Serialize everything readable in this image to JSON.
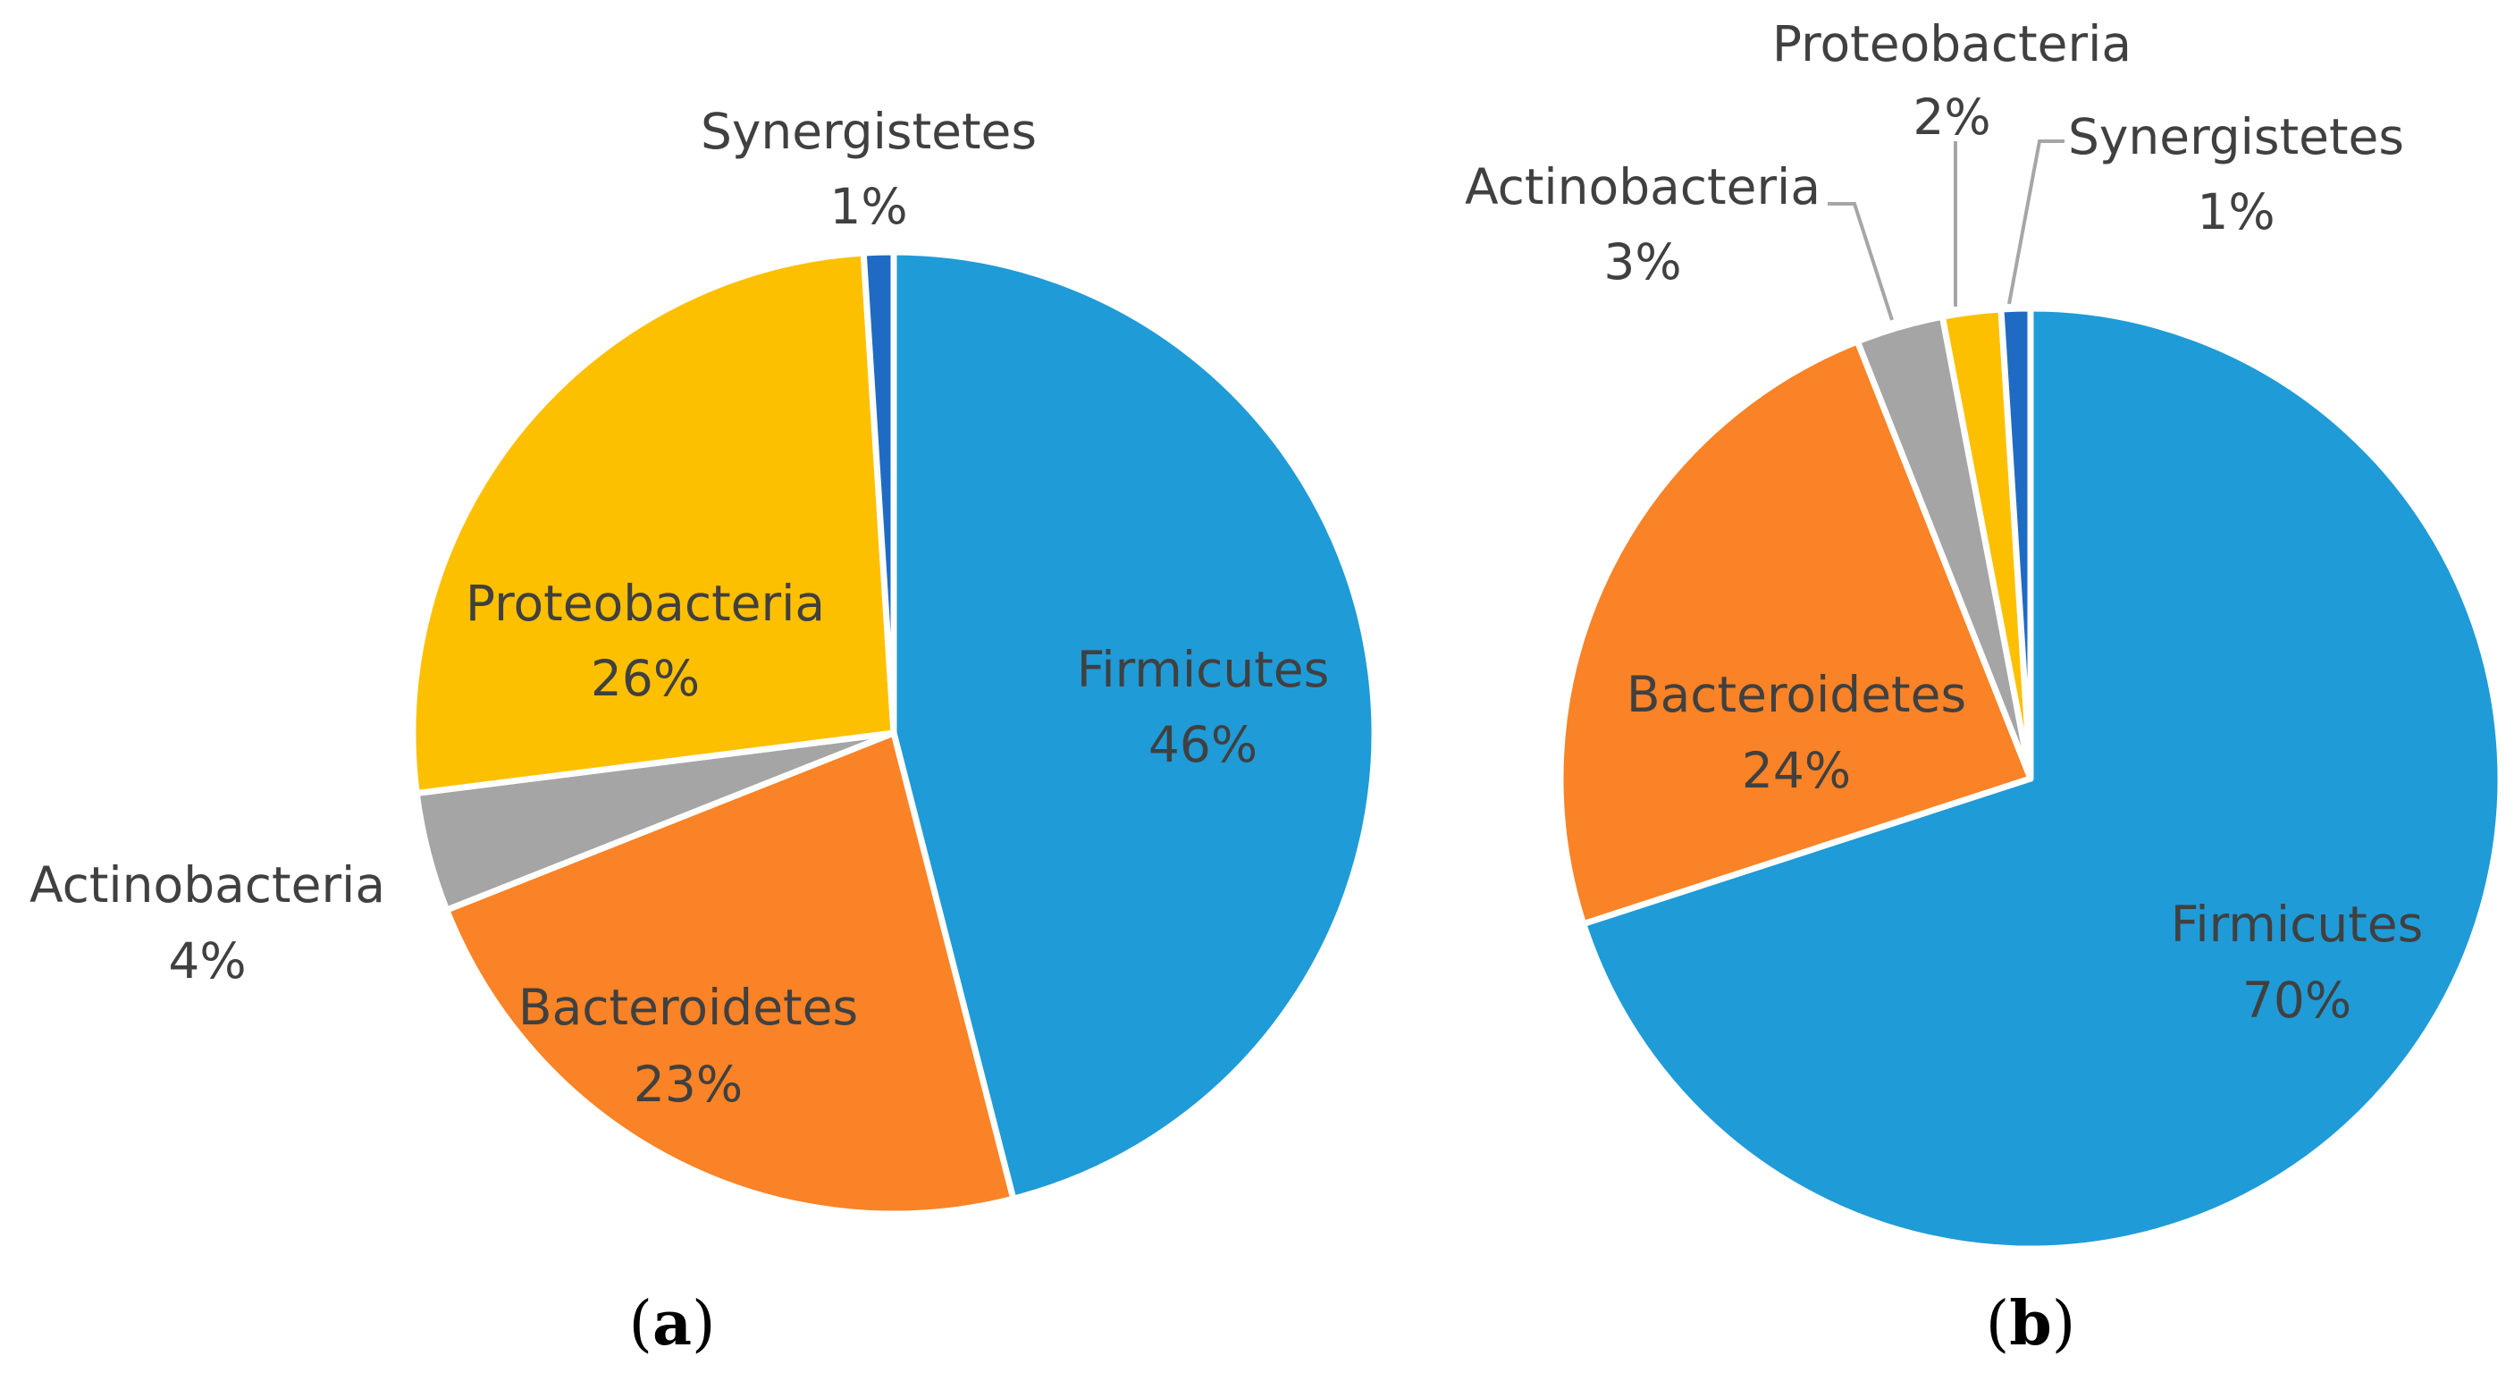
{
  "chart_data": [
    {
      "type": "pie",
      "panel_label": "a",
      "start_angle_deg": 0,
      "direction": "clockwise",
      "slices": [
        {
          "name": "Firmicutes",
          "value": 46,
          "label": "46%",
          "color": "#1f9bd7"
        },
        {
          "name": "Bacteroidetes",
          "value": 23,
          "label": "23%",
          "color": "#f98326"
        },
        {
          "name": "Actinobacteria",
          "value": 4,
          "label": "4%",
          "color": "#a5a5a5"
        },
        {
          "name": "Proteobacteria",
          "value": 26,
          "label": "26%",
          "color": "#fdc000"
        },
        {
          "name": "Synergistetes",
          "value": 1,
          "label": "1%",
          "color": "#1f6bc4"
        }
      ]
    },
    {
      "type": "pie",
      "panel_label": "b",
      "start_angle_deg": 0,
      "direction": "clockwise",
      "slices": [
        {
          "name": "Firmicutes",
          "value": 70,
          "label": "70%",
          "color": "#1f9bd7"
        },
        {
          "name": "Bacteroidetes",
          "value": 24,
          "label": "24%",
          "color": "#f98326"
        },
        {
          "name": "Actinobacteria",
          "value": 3,
          "label": "3%",
          "color": "#a5a5a5"
        },
        {
          "name": "Proteobacteria",
          "value": 2,
          "label": "2%",
          "color": "#fdc000"
        },
        {
          "name": "Synergistetes",
          "value": 1,
          "label": "1%",
          "color": "#1f6bc4"
        }
      ]
    }
  ]
}
